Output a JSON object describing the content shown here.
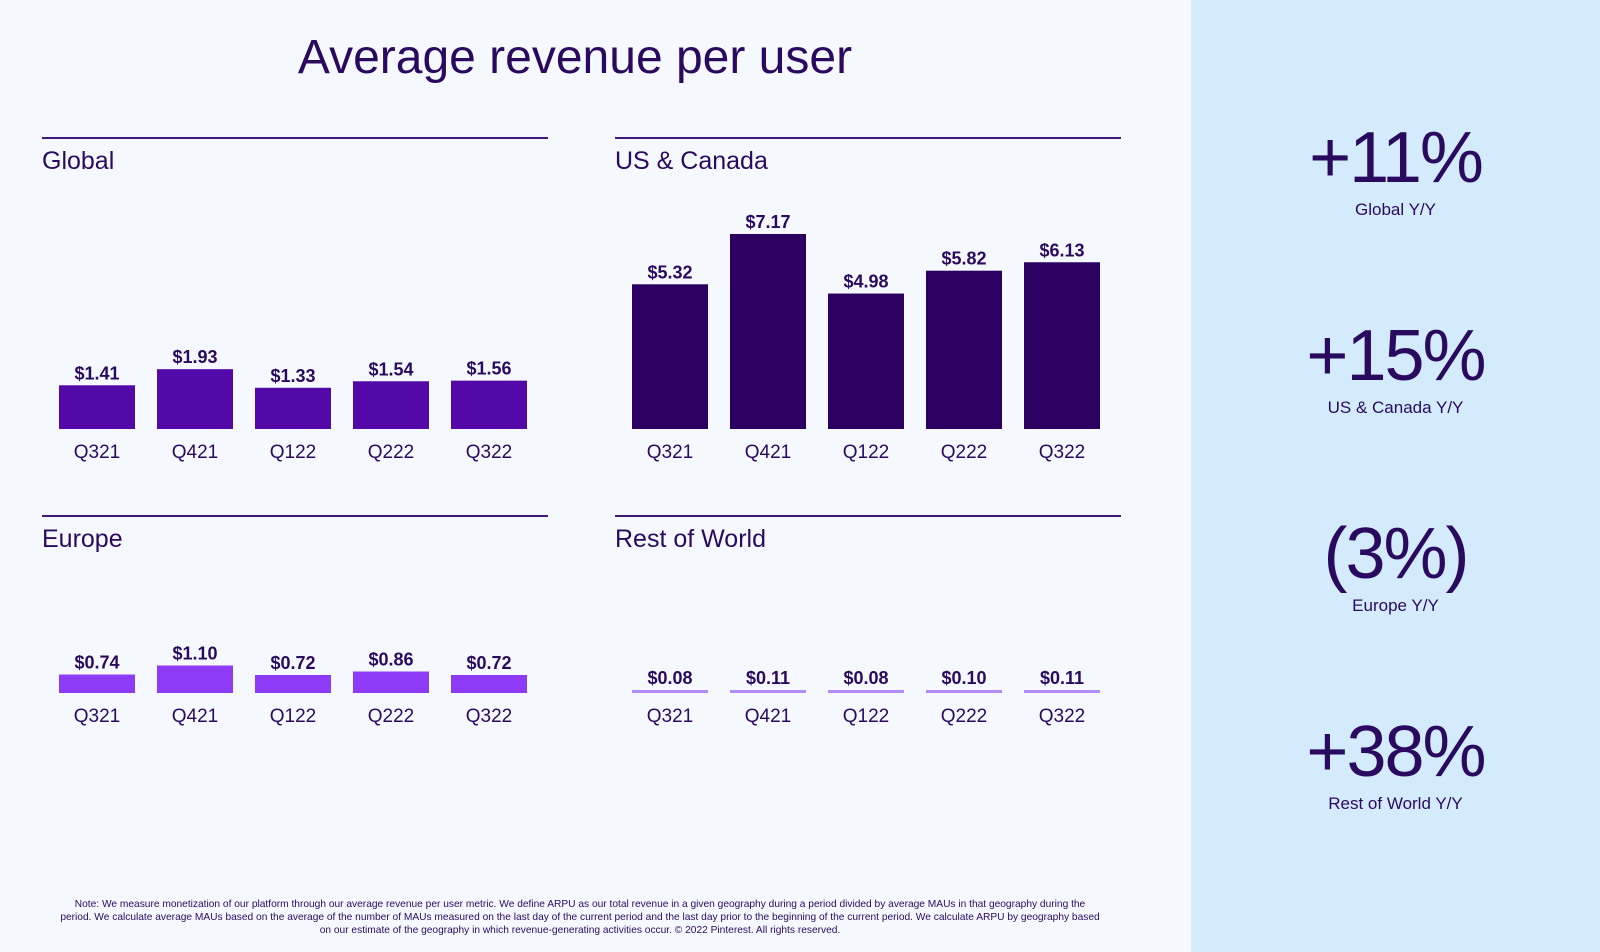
{
  "page": {
    "title": "Average revenue per user"
  },
  "colors": {
    "text": "#2A0A5E",
    "rule": "#3D1A78",
    "main_bg": "#F5F9FF",
    "sidebar_bg": "#D4EAFD",
    "global_bar": "#5209A8",
    "us_canada_bar": "#2C0060",
    "europe_bar": "#8E3BF7",
    "rest_of_world_bar": "#B18CF7"
  },
  "chart_data": [
    {
      "type": "bar",
      "title": "Global",
      "categories": [
        "Q321",
        "Q421",
        "Q122",
        "Q222",
        "Q322"
      ],
      "values": [
        1.41,
        1.93,
        1.33,
        1.54,
        1.56
      ],
      "labels": [
        "$1.41",
        "$1.93",
        "$1.33",
        "$1.54",
        "$1.56"
      ],
      "xlabel": "",
      "ylabel": "",
      "grid": false,
      "color": "#5209A8"
    },
    {
      "type": "bar",
      "title": "US & Canada",
      "categories": [
        "Q321",
        "Q421",
        "Q122",
        "Q222",
        "Q322"
      ],
      "values": [
        5.32,
        7.17,
        4.98,
        5.82,
        6.13
      ],
      "labels": [
        "$5.32",
        "$7.17",
        "$4.98",
        "$5.82",
        "$6.13"
      ],
      "xlabel": "",
      "ylabel": "",
      "grid": false,
      "color": "#2C0060"
    },
    {
      "type": "bar",
      "title": "Europe",
      "categories": [
        "Q321",
        "Q421",
        "Q122",
        "Q222",
        "Q322"
      ],
      "values": [
        0.74,
        1.1,
        0.72,
        0.86,
        0.72
      ],
      "labels": [
        "$0.74",
        "$1.10",
        "$0.72",
        "$0.86",
        "$0.72"
      ],
      "xlabel": "",
      "ylabel": "",
      "grid": false,
      "color": "#8E3BF7"
    },
    {
      "type": "bar",
      "title": "Rest of World",
      "categories": [
        "Q321",
        "Q421",
        "Q122",
        "Q222",
        "Q322"
      ],
      "values": [
        0.08,
        0.11,
        0.08,
        0.1,
        0.11
      ],
      "labels": [
        "$0.08",
        "$0.11",
        "$0.08",
        "$0.10",
        "$0.11"
      ],
      "xlabel": "",
      "ylabel": "",
      "grid": false,
      "color": "#B18CF7"
    }
  ],
  "sidebar": {
    "stats": [
      {
        "value": "+11%",
        "label": "Global Y/Y"
      },
      {
        "value": "+15%",
        "label": "US & Canada Y/Y"
      },
      {
        "value": "(3%)",
        "label": "Europe Y/Y"
      },
      {
        "value": "+38%",
        "label": "Rest of World Y/Y"
      }
    ]
  },
  "footnote": "Note: We measure monetization of our platform through our average revenue per user metric. We define ARPU as our total revenue in a given geography during a period divided by average MAUs in that geography during the period. We calculate average MAUs based on the average of the number of MAUs measured on the last day of the current period and the last day prior to the beginning of the current period. We calculate ARPU by geography based on our estimate of the geography in which revenue-generating activities occur. © 2022 Pinterest. All rights reserved."
}
